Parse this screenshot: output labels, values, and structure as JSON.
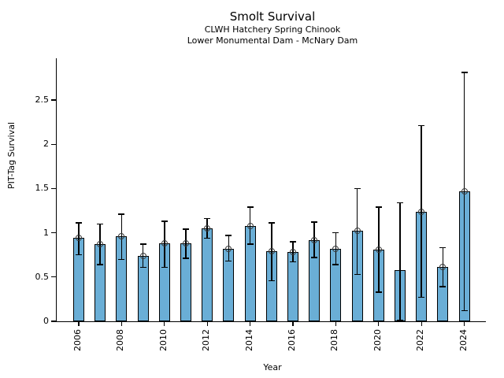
{
  "chart_data": {
    "type": "bar",
    "title": "Smolt Survival",
    "subtitle_line1": "CLWH Hatchery Spring Chinook",
    "subtitle_line2": "Lower Monumental Dam - McNary Dam",
    "xlabel": "Year",
    "ylabel": "PIT-Tag Survival",
    "ylim": [
      0,
      2.97
    ],
    "grid": false,
    "legend": "none",
    "bar_color": "#6aaed6",
    "bar_edge_color": "#000000",
    "error_bar_color": "#000000",
    "marker_style": "open-circle",
    "yticks": [
      {
        "value": 0,
        "label": "0"
      },
      {
        "value": 0.5,
        "label": "0.5"
      },
      {
        "value": 1,
        "label": "1"
      },
      {
        "value": 1.5,
        "label": "1.5"
      },
      {
        "value": 2,
        "label": "2"
      },
      {
        "value": 2.5,
        "label": "2.5"
      }
    ],
    "xtick_years": [
      2006,
      2008,
      2010,
      2012,
      2014,
      2016,
      2018,
      2020,
      2022,
      2024
    ],
    "points": [
      {
        "year": 2006,
        "value": 0.94,
        "err_low": 0.75,
        "err_high": 1.11,
        "marker": true
      },
      {
        "year": 2007,
        "value": 0.87,
        "err_low": 0.64,
        "err_high": 1.1,
        "marker": true
      },
      {
        "year": 2008,
        "value": 0.96,
        "err_low": 0.7,
        "err_high": 1.21,
        "marker": true
      },
      {
        "year": 2009,
        "value": 0.74,
        "err_low": 0.61,
        "err_high": 0.87,
        "marker": true
      },
      {
        "year": 2010,
        "value": 0.88,
        "err_low": 0.61,
        "err_high": 1.13,
        "marker": true
      },
      {
        "year": 2011,
        "value": 0.88,
        "err_low": 0.71,
        "err_high": 1.04,
        "marker": true
      },
      {
        "year": 2012,
        "value": 1.05,
        "err_low": 0.94,
        "err_high": 1.16,
        "marker": true
      },
      {
        "year": 2013,
        "value": 0.82,
        "err_low": 0.68,
        "err_high": 0.97,
        "marker": true
      },
      {
        "year": 2014,
        "value": 1.08,
        "err_low": 0.87,
        "err_high": 1.29,
        "marker": true
      },
      {
        "year": 2015,
        "value": 0.79,
        "err_low": 0.46,
        "err_high": 1.11,
        "marker": true
      },
      {
        "year": 2016,
        "value": 0.78,
        "err_low": 0.67,
        "err_high": 0.9,
        "marker": true
      },
      {
        "year": 2017,
        "value": 0.92,
        "err_low": 0.72,
        "err_high": 1.12,
        "marker": true
      },
      {
        "year": 2018,
        "value": 0.82,
        "err_low": 0.64,
        "err_high": 1.0,
        "marker": true
      },
      {
        "year": 2019,
        "value": 1.02,
        "err_low": 0.53,
        "err_high": 1.5,
        "marker": true
      },
      {
        "year": 2020,
        "value": 0.81,
        "err_low": 0.33,
        "err_high": 1.29,
        "marker": true
      },
      {
        "year": 2021,
        "value": 0.58,
        "err_low": 0.01,
        "err_high": 1.34,
        "marker": false
      },
      {
        "year": 2022,
        "value": 1.24,
        "err_low": 0.27,
        "err_high": 2.21,
        "marker": true
      },
      {
        "year": 2023,
        "value": 0.61,
        "err_low": 0.39,
        "err_high": 0.83,
        "marker": true
      },
      {
        "year": 2024,
        "value": 1.47,
        "err_low": 0.12,
        "err_high": 2.81,
        "marker": true
      }
    ]
  }
}
